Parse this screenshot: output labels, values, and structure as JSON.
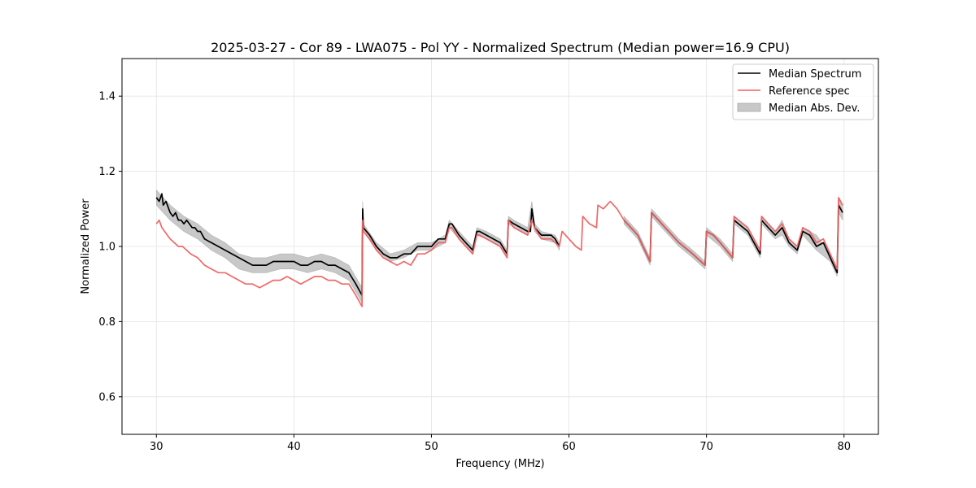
{
  "chart_data": {
    "type": "line",
    "title": "2025-03-27 - Cor 89 - LWA075 - Pol YY - Normalized Spectrum (Median power=16.9 CPU)",
    "xlabel": "Frequency (MHz)",
    "ylabel": "Normalized Power",
    "xlim": [
      27.5,
      82.5
    ],
    "ylim": [
      0.5,
      1.5
    ],
    "xticks": [
      30,
      40,
      50,
      60,
      70,
      80
    ],
    "xtick_labels": [
      "30",
      "40",
      "50",
      "60",
      "70",
      "80"
    ],
    "yticks": [
      0.6,
      0.8,
      1.0,
      1.2,
      1.4
    ],
    "ytick_labels": [
      "0.6",
      "0.8",
      "1.0",
      "1.2",
      "1.4"
    ],
    "grid": true,
    "legend_position": "top-right",
    "legend": [
      "Median Spectrum",
      "Reference spec",
      "Median Abs. Dev."
    ],
    "colors": {
      "median": "#000000",
      "reference": "#f06060",
      "mad": "#c8c8c8",
      "overlap": "#8b0000"
    },
    "series": [
      {
        "name": "Median Spectrum",
        "x": [
          30.0,
          30.2,
          30.4,
          30.5,
          30.7,
          30.9,
          31.0,
          31.2,
          31.4,
          31.6,
          31.8,
          32.0,
          32.2,
          32.4,
          32.6,
          32.8,
          33.0,
          33.2,
          33.5,
          34.0,
          34.5,
          35.0,
          35.5,
          36.0,
          36.5,
          37.0,
          37.5,
          38.0,
          38.5,
          39.0,
          39.5,
          40.0,
          40.5,
          41.0,
          41.5,
          42.0,
          42.5,
          43.0,
          43.5,
          44.0,
          44.5,
          44.95,
          45.0,
          45.05,
          45.5,
          46.0,
          46.5,
          47.0,
          47.5,
          48.0,
          48.5,
          49.0,
          49.5,
          50.0,
          50.5,
          51.0,
          51.3,
          51.5,
          52.0,
          52.5,
          53.0,
          53.3,
          53.5,
          54.0,
          54.5,
          55.0,
          55.5,
          55.6,
          56.0,
          56.5,
          57.0,
          57.2,
          57.3,
          57.5,
          58.0,
          58.5,
          58.7,
          59.0,
          59.3,
          null,
          64.0,
          65.0,
          65.9,
          66.0,
          66.5,
          67.0,
          68.0,
          69.0,
          69.9,
          70.0,
          70.5,
          71.0,
          71.9,
          72.0,
          73.0,
          73.9,
          74.0,
          74.5,
          75.0,
          75.5,
          76.0,
          76.6,
          77.0,
          77.5,
          78.0,
          78.5,
          79.0,
          79.5,
          79.6,
          79.9
        ],
        "values": [
          1.13,
          1.12,
          1.14,
          1.11,
          1.12,
          1.1,
          1.09,
          1.08,
          1.09,
          1.07,
          1.07,
          1.06,
          1.07,
          1.06,
          1.05,
          1.05,
          1.04,
          1.04,
          1.02,
          1.01,
          1.0,
          0.99,
          0.98,
          0.97,
          0.96,
          0.95,
          0.95,
          0.95,
          0.96,
          0.96,
          0.96,
          0.96,
          0.95,
          0.95,
          0.96,
          0.96,
          0.95,
          0.95,
          0.94,
          0.93,
          0.9,
          0.87,
          1.1,
          1.05,
          1.03,
          1.0,
          0.98,
          0.97,
          0.97,
          0.98,
          0.98,
          1.0,
          1.0,
          1.0,
          1.02,
          1.02,
          1.06,
          1.06,
          1.03,
          1.01,
          0.99,
          1.04,
          1.04,
          1.03,
          1.02,
          1.01,
          0.98,
          1.07,
          1.06,
          1.05,
          1.04,
          1.04,
          1.1,
          1.05,
          1.03,
          1.03,
          1.03,
          1.02,
          1.0,
          null,
          1.07,
          1.03,
          0.96,
          1.09,
          1.07,
          1.05,
          1.01,
          0.98,
          0.95,
          1.04,
          1.03,
          1.01,
          0.97,
          1.07,
          1.04,
          0.98,
          1.07,
          1.05,
          1.03,
          1.05,
          1.01,
          0.99,
          1.04,
          1.03,
          1.0,
          1.01,
          0.97,
          0.93,
          1.11,
          1.09
        ]
      },
      {
        "name": "Reference spec",
        "x": [
          30.0,
          30.2,
          30.4,
          30.6,
          30.8,
          31.0,
          31.3,
          31.6,
          31.9,
          32.2,
          32.5,
          33.0,
          33.5,
          34.0,
          34.5,
          35.0,
          35.5,
          36.0,
          36.5,
          37.0,
          37.5,
          38.0,
          38.5,
          39.0,
          39.5,
          40.0,
          40.5,
          41.0,
          41.5,
          42.0,
          42.5,
          43.0,
          43.5,
          44.0,
          44.5,
          44.95,
          45.0,
          45.05,
          45.5,
          46.0,
          46.5,
          47.0,
          47.5,
          48.0,
          48.5,
          49.0,
          49.5,
          50.0,
          50.5,
          51.0,
          51.3,
          51.5,
          52.0,
          52.5,
          53.0,
          53.3,
          53.5,
          54.0,
          54.5,
          55.0,
          55.5,
          55.6,
          56.0,
          56.5,
          57.0,
          57.3,
          57.5,
          58.0,
          58.5,
          58.7,
          59.0,
          59.3,
          59.5,
          60.0,
          60.5,
          60.9,
          61.0,
          61.5,
          62.0,
          62.1,
          62.5,
          63.0,
          63.5,
          64.0,
          65.0,
          65.9,
          66.0,
          66.5,
          67.0,
          68.0,
          69.0,
          69.9,
          70.0,
          70.5,
          71.0,
          71.9,
          72.0,
          73.0,
          73.9,
          74.0,
          74.5,
          75.0,
          75.5,
          76.0,
          76.6,
          77.0,
          77.5,
          78.0,
          78.5,
          79.0,
          79.5,
          79.6,
          79.9
        ],
        "values": [
          1.06,
          1.07,
          1.05,
          1.04,
          1.03,
          1.02,
          1.01,
          1.0,
          1.0,
          0.99,
          0.98,
          0.97,
          0.95,
          0.94,
          0.93,
          0.93,
          0.92,
          0.91,
          0.9,
          0.9,
          0.89,
          0.9,
          0.91,
          0.91,
          0.92,
          0.91,
          0.9,
          0.91,
          0.92,
          0.92,
          0.91,
          0.91,
          0.9,
          0.9,
          0.87,
          0.84,
          1.07,
          1.04,
          1.02,
          0.99,
          0.97,
          0.96,
          0.95,
          0.96,
          0.95,
          0.98,
          0.98,
          0.99,
          1.01,
          1.01,
          1.05,
          1.05,
          1.02,
          1.0,
          0.98,
          1.03,
          1.03,
          1.02,
          1.01,
          1.0,
          0.97,
          1.07,
          1.05,
          1.04,
          1.03,
          1.07,
          1.05,
          1.02,
          1.02,
          1.02,
          1.01,
          1.0,
          1.04,
          1.02,
          1.0,
          0.99,
          1.08,
          1.06,
          1.05,
          1.11,
          1.1,
          1.12,
          1.1,
          1.07,
          1.03,
          0.96,
          1.09,
          1.07,
          1.05,
          1.01,
          0.98,
          0.95,
          1.04,
          1.03,
          1.01,
          0.97,
          1.08,
          1.05,
          0.99,
          1.08,
          1.06,
          1.04,
          1.06,
          1.02,
          1.0,
          1.05,
          1.04,
          1.01,
          1.02,
          0.98,
          0.94,
          1.13,
          1.11
        ]
      },
      {
        "name": "Median Abs. Dev.",
        "x": [
          30.0,
          31.0,
          32.0,
          33.0,
          34.0,
          35.0,
          36.0,
          37.0,
          38.0,
          39.0,
          40.0,
          41.0,
          42.0,
          43.0,
          44.0,
          44.95,
          45.0,
          45.05,
          46.0,
          47.0,
          48.0,
          49.0,
          50.0,
          51.0,
          51.3,
          52.0,
          53.0,
          53.3,
          54.0,
          55.0,
          55.5,
          55.6,
          56.0,
          57.0,
          57.3,
          57.5,
          58.0,
          59.0,
          59.3,
          null,
          64.0,
          65.0,
          65.9,
          66.0,
          67.0,
          68.0,
          69.0,
          69.9,
          70.0,
          71.0,
          71.9,
          72.0,
          73.0,
          73.9,
          74.0,
          75.0,
          75.5,
          76.0,
          76.6,
          77.0,
          78.0,
          79.0,
          79.5,
          79.6,
          79.9
        ],
        "lower": [
          1.11,
          1.07,
          1.04,
          1.02,
          0.99,
          0.97,
          0.94,
          0.93,
          0.93,
          0.94,
          0.94,
          0.93,
          0.94,
          0.93,
          0.91,
          0.85,
          1.08,
          1.04,
          0.99,
          0.96,
          0.97,
          0.99,
          0.99,
          1.01,
          1.05,
          1.02,
          0.98,
          1.03,
          1.02,
          1.0,
          0.97,
          1.06,
          1.05,
          1.03,
          1.08,
          1.04,
          1.02,
          1.01,
          0.99,
          null,
          1.06,
          1.02,
          0.95,
          1.08,
          1.04,
          1.0,
          0.97,
          0.94,
          1.03,
          1.0,
          0.96,
          1.06,
          1.03,
          0.97,
          1.06,
          1.02,
          1.03,
          1.0,
          0.98,
          1.03,
          0.99,
          0.96,
          0.92,
          1.09,
          1.07
        ],
        "upper": [
          1.15,
          1.11,
          1.08,
          1.06,
          1.03,
          1.01,
          0.98,
          0.97,
          0.97,
          0.98,
          0.98,
          0.97,
          0.98,
          0.97,
          0.95,
          0.89,
          1.12,
          1.06,
          1.01,
          0.98,
          0.99,
          1.01,
          1.01,
          1.03,
          1.07,
          1.04,
          1.0,
          1.05,
          1.04,
          1.02,
          0.99,
          1.08,
          1.07,
          1.05,
          1.12,
          1.06,
          1.04,
          1.03,
          1.01,
          null,
          1.08,
          1.04,
          0.97,
          1.1,
          1.06,
          1.02,
          0.99,
          0.96,
          1.05,
          1.02,
          0.98,
          1.08,
          1.05,
          0.99,
          1.08,
          1.04,
          1.07,
          1.02,
          1.0,
          1.05,
          1.03,
          0.98,
          0.94,
          1.13,
          1.11
        ]
      }
    ]
  }
}
